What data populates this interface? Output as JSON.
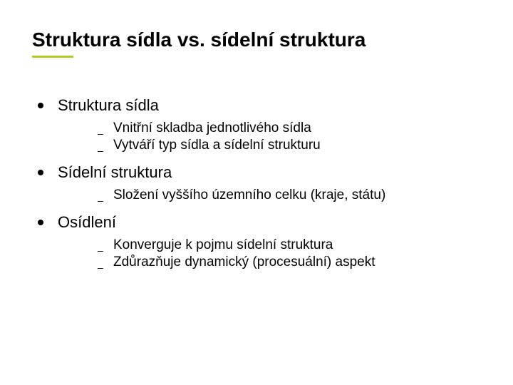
{
  "title": "Struktura sídla vs. sídelní struktura",
  "accent_color": "#b3cb1d",
  "title_fontsize": 28,
  "main_fontsize": 22,
  "sub_fontsize": 19,
  "background_color": "#ffffff",
  "text_color": "#000000",
  "items": [
    {
      "label": "Struktura sídla",
      "sub": [
        "Vnitřní skladba jednotlivého sídla",
        "Vytváří typ sídla a sídelní strukturu"
      ]
    },
    {
      "label": "Sídelní struktura",
      "sub": [
        "Složení vyššího územního celku (kraje, státu)"
      ]
    },
    {
      "label": "Osídlení",
      "sub": [
        "Konverguje k pojmu sídelní struktura",
        "Zdůrazňuje dynamický (procesuální) aspekt"
      ]
    }
  ]
}
